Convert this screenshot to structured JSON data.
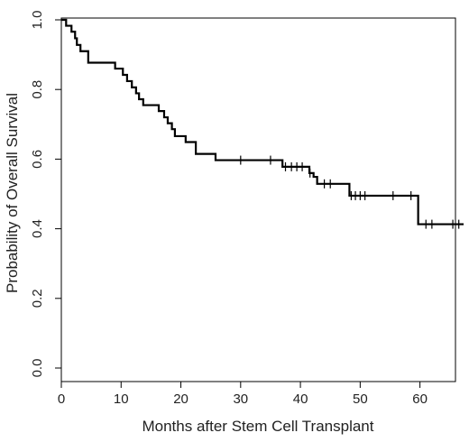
{
  "chart_data": {
    "type": "line",
    "subtype": "kaplan-meier-step",
    "xlabel": "Months after Stem Cell Transplant",
    "ylabel": "Probability of Overall Survival",
    "xlim": [
      0,
      68
    ],
    "ylim": [
      0,
      1.0
    ],
    "x_ticks": [
      0,
      10,
      20,
      30,
      40,
      50,
      60
    ],
    "x_tick_labels": [
      "0",
      "10",
      "20",
      "30",
      "40",
      "50",
      "60"
    ],
    "y_ticks": [
      0.0,
      0.2,
      0.4,
      0.6,
      0.8,
      1.0
    ],
    "y_tick_labels": [
      "0.0",
      "0.2",
      "0.4",
      "0.6",
      "0.8",
      "1.0"
    ],
    "grid": false,
    "series": [
      {
        "line_color": "#000000",
        "steps": [
          {
            "x": 0.0,
            "y": 1.0
          },
          {
            "x": 0.8,
            "y": 0.983
          },
          {
            "x": 1.7,
            "y": 0.966
          },
          {
            "x": 2.3,
            "y": 0.947
          },
          {
            "x": 2.6,
            "y": 0.928
          },
          {
            "x": 3.2,
            "y": 0.91
          },
          {
            "x": 4.5,
            "y": 0.877
          },
          {
            "x": 9.0,
            "y": 0.86
          },
          {
            "x": 10.3,
            "y": 0.842
          },
          {
            "x": 11.0,
            "y": 0.824
          },
          {
            "x": 11.8,
            "y": 0.806
          },
          {
            "x": 12.5,
            "y": 0.789
          },
          {
            "x": 13.0,
            "y": 0.772
          },
          {
            "x": 13.7,
            "y": 0.755
          },
          {
            "x": 16.3,
            "y": 0.738
          },
          {
            "x": 17.2,
            "y": 0.72
          },
          {
            "x": 17.8,
            "y": 0.703
          },
          {
            "x": 18.5,
            "y": 0.686
          },
          {
            "x": 19.0,
            "y": 0.666
          },
          {
            "x": 20.8,
            "y": 0.649
          },
          {
            "x": 22.5,
            "y": 0.615
          },
          {
            "x": 25.8,
            "y": 0.597
          },
          {
            "x": 37.0,
            "y": 0.578
          },
          {
            "x": 41.5,
            "y": 0.56
          },
          {
            "x": 42.2,
            "y": 0.549
          },
          {
            "x": 42.8,
            "y": 0.529
          },
          {
            "x": 48.2,
            "y": 0.495
          },
          {
            "x": 59.7,
            "y": 0.413
          }
        ],
        "end_x": 67.3,
        "censored": [
          {
            "x": 30.0,
            "y": 0.597
          },
          {
            "x": 35.0,
            "y": 0.597
          },
          {
            "x": 37.5,
            "y": 0.578
          },
          {
            "x": 38.5,
            "y": 0.578
          },
          {
            "x": 39.4,
            "y": 0.578
          },
          {
            "x": 40.3,
            "y": 0.578
          },
          {
            "x": 41.6,
            "y": 0.56
          },
          {
            "x": 44.0,
            "y": 0.529
          },
          {
            "x": 45.0,
            "y": 0.529
          },
          {
            "x": 48.5,
            "y": 0.495
          },
          {
            "x": 49.2,
            "y": 0.495
          },
          {
            "x": 50.0,
            "y": 0.495
          },
          {
            "x": 50.8,
            "y": 0.495
          },
          {
            "x": 55.5,
            "y": 0.495
          },
          {
            "x": 58.5,
            "y": 0.495
          },
          {
            "x": 61.0,
            "y": 0.413
          },
          {
            "x": 62.0,
            "y": 0.413
          },
          {
            "x": 65.5,
            "y": 0.413
          },
          {
            "x": 66.5,
            "y": 0.413
          }
        ]
      }
    ]
  }
}
